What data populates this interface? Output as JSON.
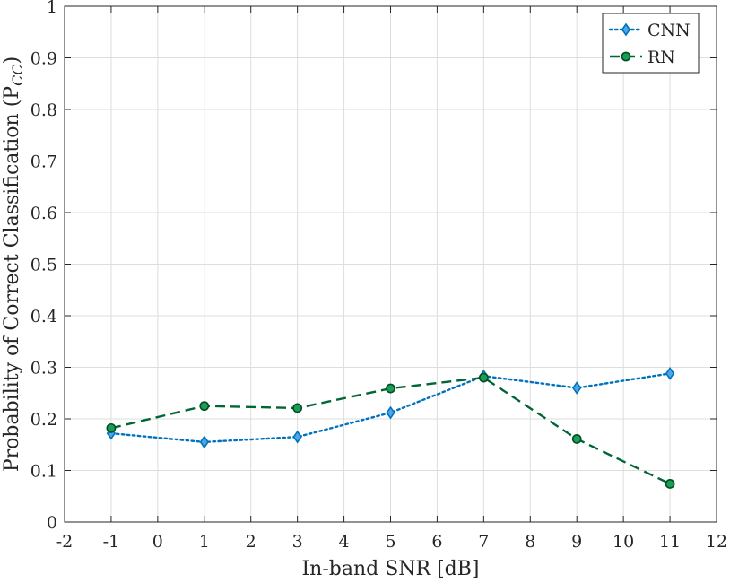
{
  "chart_data": {
    "type": "line",
    "title": "",
    "xlabel": "In-band SNR [dB]",
    "ylabel": "Probability of Correct Classification (P",
    "ylabel_subscript": "CC",
    "ylabel_close": ")",
    "xlim": [
      -2,
      12
    ],
    "ylim": [
      0,
      1
    ],
    "xticks": [
      -2,
      -1,
      0,
      1,
      2,
      3,
      4,
      5,
      6,
      7,
      8,
      9,
      10,
      11,
      12
    ],
    "yticks": [
      0,
      0.1,
      0.2,
      0.3,
      0.4,
      0.5,
      0.6,
      0.7,
      0.8,
      0.9,
      1
    ],
    "grid": true,
    "legend_position": "top-right",
    "series": [
      {
        "name": "CNN",
        "color": "#0072BD",
        "line_style": "dotted",
        "marker": "diamond",
        "x": [
          -1,
          1,
          3,
          5,
          7,
          9,
          11
        ],
        "y": [
          0.172,
          0.155,
          0.165,
          0.212,
          0.283,
          0.26,
          0.288
        ]
      },
      {
        "name": "RN",
        "color": "#006633",
        "line_style": "dashed",
        "marker": "circle",
        "x": [
          -1,
          1,
          3,
          5,
          7,
          9,
          11
        ],
        "y": [
          0.182,
          0.225,
          0.221,
          0.259,
          0.28,
          0.161,
          0.074
        ]
      }
    ]
  }
}
